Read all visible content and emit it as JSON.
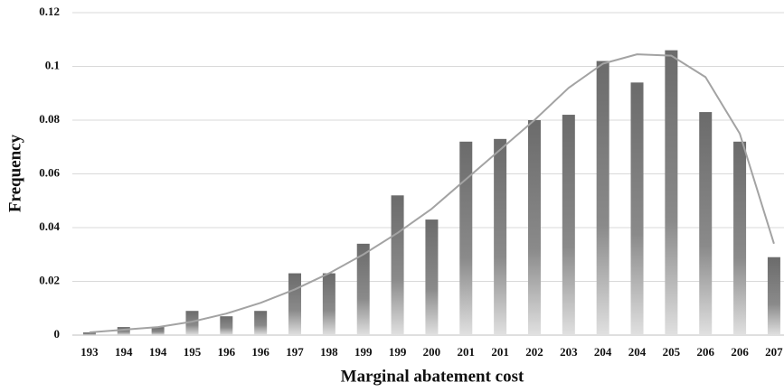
{
  "chart_data": {
    "type": "bar",
    "x_label": "Marginal abatement cost",
    "y_label": "Frequency",
    "categories": [
      "193",
      "194",
      "194",
      "195",
      "196",
      "196",
      "197",
      "198",
      "199",
      "199",
      "200",
      "201",
      "201",
      "202",
      "203",
      "204",
      "204",
      "205",
      "206",
      "206",
      "207"
    ],
    "series": [
      {
        "type": "bar",
        "color": "#6b6b6b",
        "values": [
          0.001,
          0.003,
          0.003,
          0.009,
          0.007,
          0.009,
          0.023,
          0.023,
          0.034,
          0.052,
          0.043,
          0.072,
          0.073,
          0.08,
          0.082,
          0.102,
          0.094,
          0.106,
          0.083,
          0.072,
          0.029
        ]
      },
      {
        "type": "line",
        "color": "#a3a3a3",
        "values": [
          0.001,
          0.002,
          0.003,
          0.005,
          0.008,
          0.012,
          0.017,
          0.023,
          0.03,
          0.038,
          0.047,
          0.058,
          0.069,
          0.08,
          0.092,
          0.101,
          0.1045,
          0.104,
          0.096,
          0.075,
          0.034
        ]
      }
    ],
    "ylim": [
      0,
      0.12
    ],
    "yticks": [
      0,
      0.02,
      0.04,
      0.06,
      0.08,
      0.1,
      0.12
    ],
    "grid": true
  }
}
